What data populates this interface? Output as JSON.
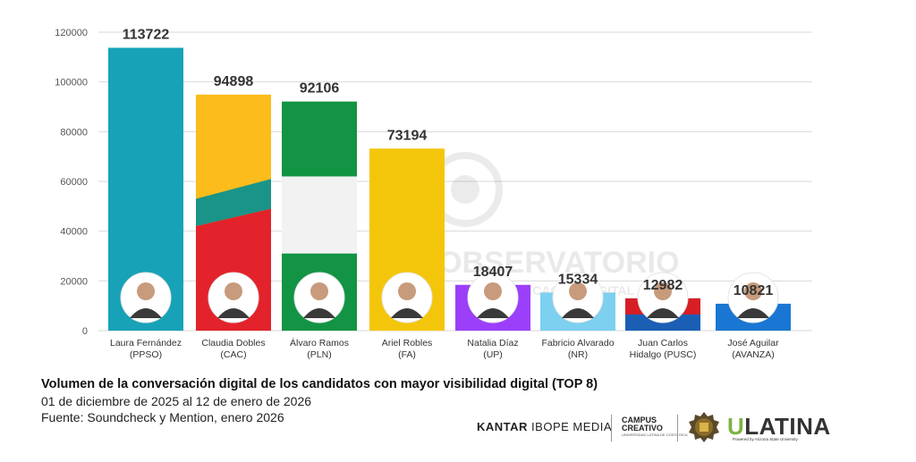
{
  "chart_data": {
    "type": "bar",
    "categories": [
      "Laura Fernández (PPSO)",
      "Claudia Dobles (CAC)",
      "Álvaro Ramos (PLN)",
      "Ariel Robles (FA)",
      "Natalia Díaz (UP)",
      "Fabricio Alvarado (NR)",
      "Juan Carlos Hidalgo (PUSC)",
      "José Aguilar (AVANZA)"
    ],
    "category_lines": [
      [
        "Laura Fernández",
        "(PPSO)"
      ],
      [
        "Claudia Dobles",
        "(CAC)"
      ],
      [
        "Álvaro Ramos",
        "(PLN)"
      ],
      [
        "Ariel Robles",
        "(FA)"
      ],
      [
        "Natalia Díaz",
        "(UP)"
      ],
      [
        "Fabricio Alvarado",
        "(NR)"
      ],
      [
        "Juan Carlos",
        "Hidalgo (PUSC)"
      ],
      [
        "José Aguilar",
        "(AVANZA)"
      ]
    ],
    "values": [
      113722,
      94898,
      92106,
      73194,
      18407,
      15334,
      12982,
      10821
    ],
    "data_labels": [
      "113722",
      "94898",
      "92106",
      "73194",
      "18407",
      "15334",
      "12982",
      "10821"
    ],
    "bar_colors": [
      "#17a2b8",
      "#fbbc1c",
      "#129444",
      "#f4c60b",
      "#9b3ffb",
      "#7dd0f0",
      "#1a67c8",
      "#1976d2"
    ],
    "yticks": [
      0,
      20000,
      40000,
      60000,
      80000,
      100000,
      120000
    ],
    "ytick_labels": [
      "0",
      "20000",
      "40000",
      "60000",
      "80000",
      "100000",
      "120000"
    ],
    "ylim": [
      0,
      120000
    ],
    "grid": true,
    "legend": "none",
    "xlabel": "",
    "ylabel": ""
  },
  "caption": {
    "title": "Volumen de la conversación digital de los candidatos con mayor visibilidad digital (TOP 8)",
    "date_range": "01 de diciembre de 2025 al 12 de enero de 2026",
    "source": "Fuente: Soundcheck y Mention, enero 2026"
  },
  "watermark": {
    "line1": "OBSERVATORIO",
    "line2": "DE COMUNICACIÓN DIGITAL"
  },
  "logos": {
    "kantar_bold": "KANTAR",
    "kantar_rest": "IBOPE MEDIA",
    "campus_line1": "CAMPUS",
    "campus_line2": "CREATIVO",
    "campus_sub": "UNIVERSIDAD LATINA DE COSTA RICA",
    "ulatina_u": "U",
    "ulatina_rest": "LATINA",
    "ulatina_sub": "Powered by Arizona State University"
  },
  "colors": {
    "grid": "#d9d9d9",
    "axis_text": "#555555",
    "value_label": "#333333"
  }
}
